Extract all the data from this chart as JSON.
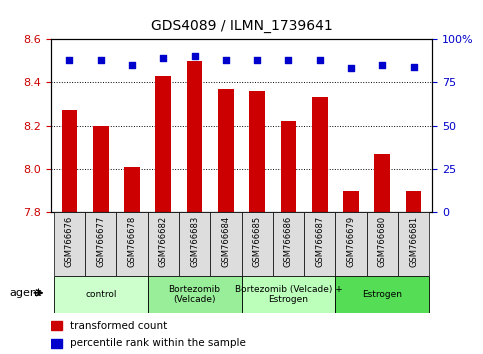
{
  "title": "GDS4089 / ILMN_1739641",
  "samples": [
    "GSM766676",
    "GSM766677",
    "GSM766678",
    "GSM766682",
    "GSM766683",
    "GSM766684",
    "GSM766685",
    "GSM766686",
    "GSM766687",
    "GSM766679",
    "GSM766680",
    "GSM766681"
  ],
  "bar_values": [
    8.27,
    8.2,
    8.01,
    8.43,
    8.5,
    8.37,
    8.36,
    8.22,
    8.33,
    7.9,
    8.07,
    7.9
  ],
  "percentile_values": [
    88,
    88,
    85,
    89,
    90,
    88,
    88,
    88,
    88,
    83,
    85,
    84
  ],
  "ylim_left": [
    7.8,
    8.6
  ],
  "ylim_right": [
    0,
    100
  ],
  "yticks_left": [
    7.8,
    8.0,
    8.2,
    8.4,
    8.6
  ],
  "yticks_right": [
    0,
    25,
    50,
    75,
    100
  ],
  "groups": [
    {
      "label": "control",
      "start": 0,
      "end": 3,
      "color": "#ccffcc"
    },
    {
      "label": "Bortezomib\n(Velcade)",
      "start": 3,
      "end": 6,
      "color": "#99ee99"
    },
    {
      "label": "Bortezomib (Velcade) +\nEstrogen",
      "start": 6,
      "end": 9,
      "color": "#bbffbb"
    },
    {
      "label": "Estrogen",
      "start": 9,
      "end": 12,
      "color": "#55dd55"
    }
  ],
  "bar_color": "#cc0000",
  "percentile_color": "#0000cc",
  "bar_width": 0.5,
  "left_tick_color": "#cc0000",
  "right_tick_color": "#0000cc",
  "legend_items": [
    {
      "label": "transformed count",
      "color": "#cc0000"
    },
    {
      "label": "percentile rank within the sample",
      "color": "#0000cc"
    }
  ],
  "agent_label": "agent",
  "sample_box_color": "#dddddd",
  "plot_bg_color": "#ffffff"
}
